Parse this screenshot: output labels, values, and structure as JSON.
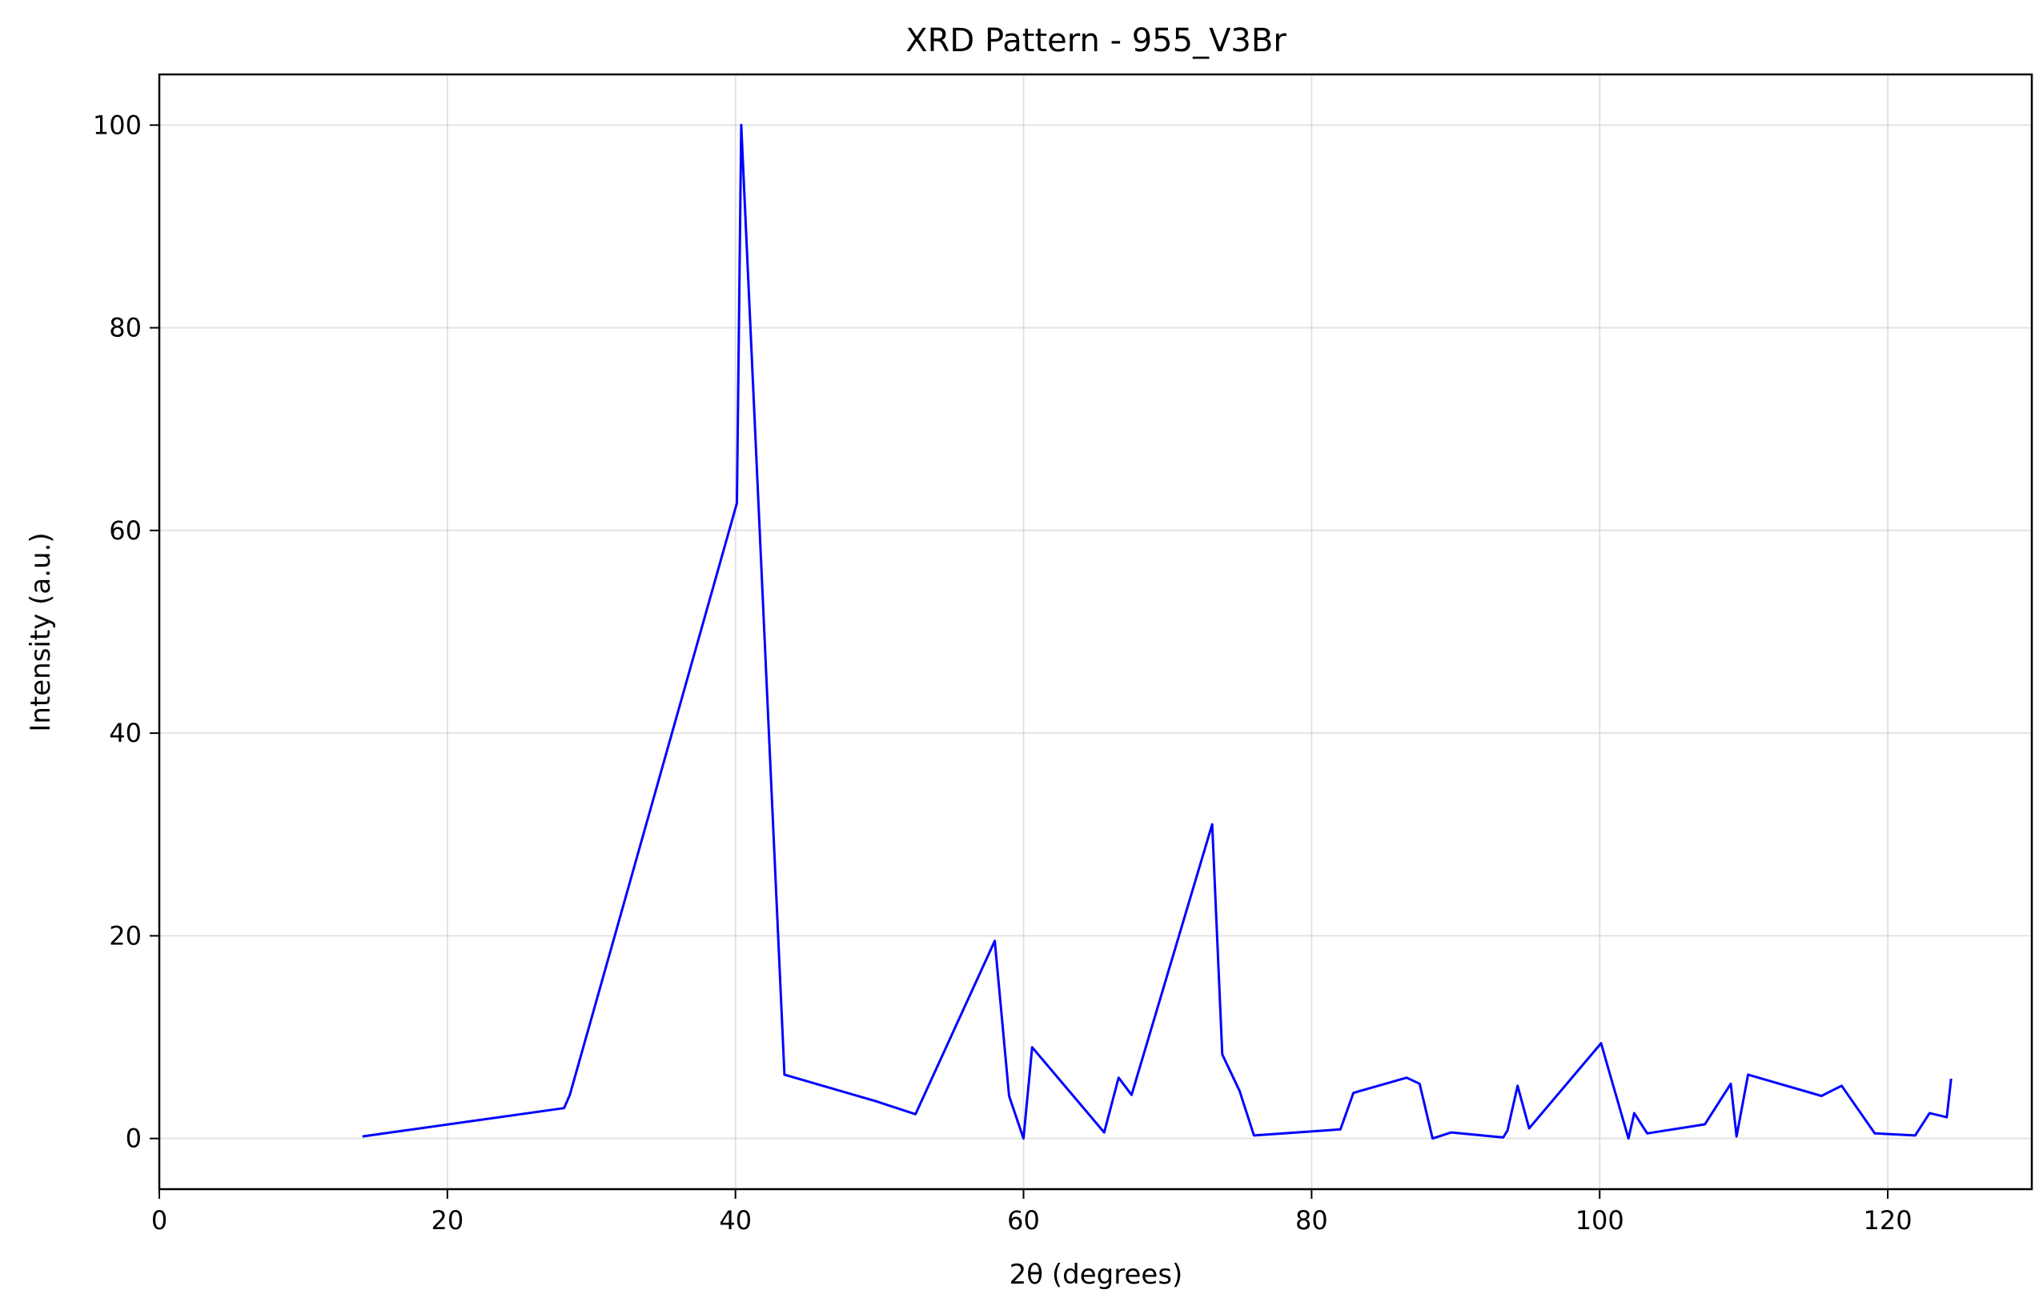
{
  "chart_data": {
    "type": "line",
    "title": "XRD Pattern - 955_V3Br",
    "xlabel": "2θ (degrees)",
    "ylabel": "Intensity (a.u.)",
    "xlim": [
      0,
      130
    ],
    "ylim": [
      -5,
      105
    ],
    "xticks": [
      0,
      20,
      40,
      60,
      80,
      100,
      120
    ],
    "yticks": [
      0,
      20,
      40,
      60,
      80,
      100
    ],
    "grid": true,
    "legend": "none",
    "series": [
      {
        "color": "#0000ff",
        "x": [
          14.1,
          28.1,
          28.5,
          40.1,
          40.4,
          43.4,
          49.7,
          52.5,
          58.0,
          59.0,
          60.0,
          60.6,
          65.6,
          66.6,
          67.5,
          73.1,
          73.8,
          75.0,
          76.0,
          82.0,
          82.9,
          86.6,
          87.5,
          88.4,
          89.7,
          93.3,
          93.6,
          94.3,
          95.1,
          100.1,
          100.5,
          102.0,
          102.4,
          103.3,
          107.3,
          109.1,
          109.5,
          110.3,
          115.4,
          116.8,
          119.1,
          121.9,
          122.9,
          124.1,
          124.4
        ],
        "y": [
          0.2,
          3.0,
          4.3,
          62.7,
          100.0,
          6.3,
          3.7,
          2.4,
          19.5,
          4.2,
          0.0,
          9.0,
          0.6,
          6.0,
          4.3,
          31.0,
          8.3,
          4.7,
          0.3,
          0.9,
          4.5,
          6.0,
          5.4,
          0.0,
          0.6,
          0.1,
          0.8,
          5.2,
          1.0,
          9.4,
          7.4,
          0.0,
          2.5,
          0.5,
          1.4,
          5.4,
          0.2,
          6.3,
          4.2,
          5.2,
          0.5,
          0.3,
          2.5,
          2.1,
          5.9
        ]
      }
    ]
  }
}
